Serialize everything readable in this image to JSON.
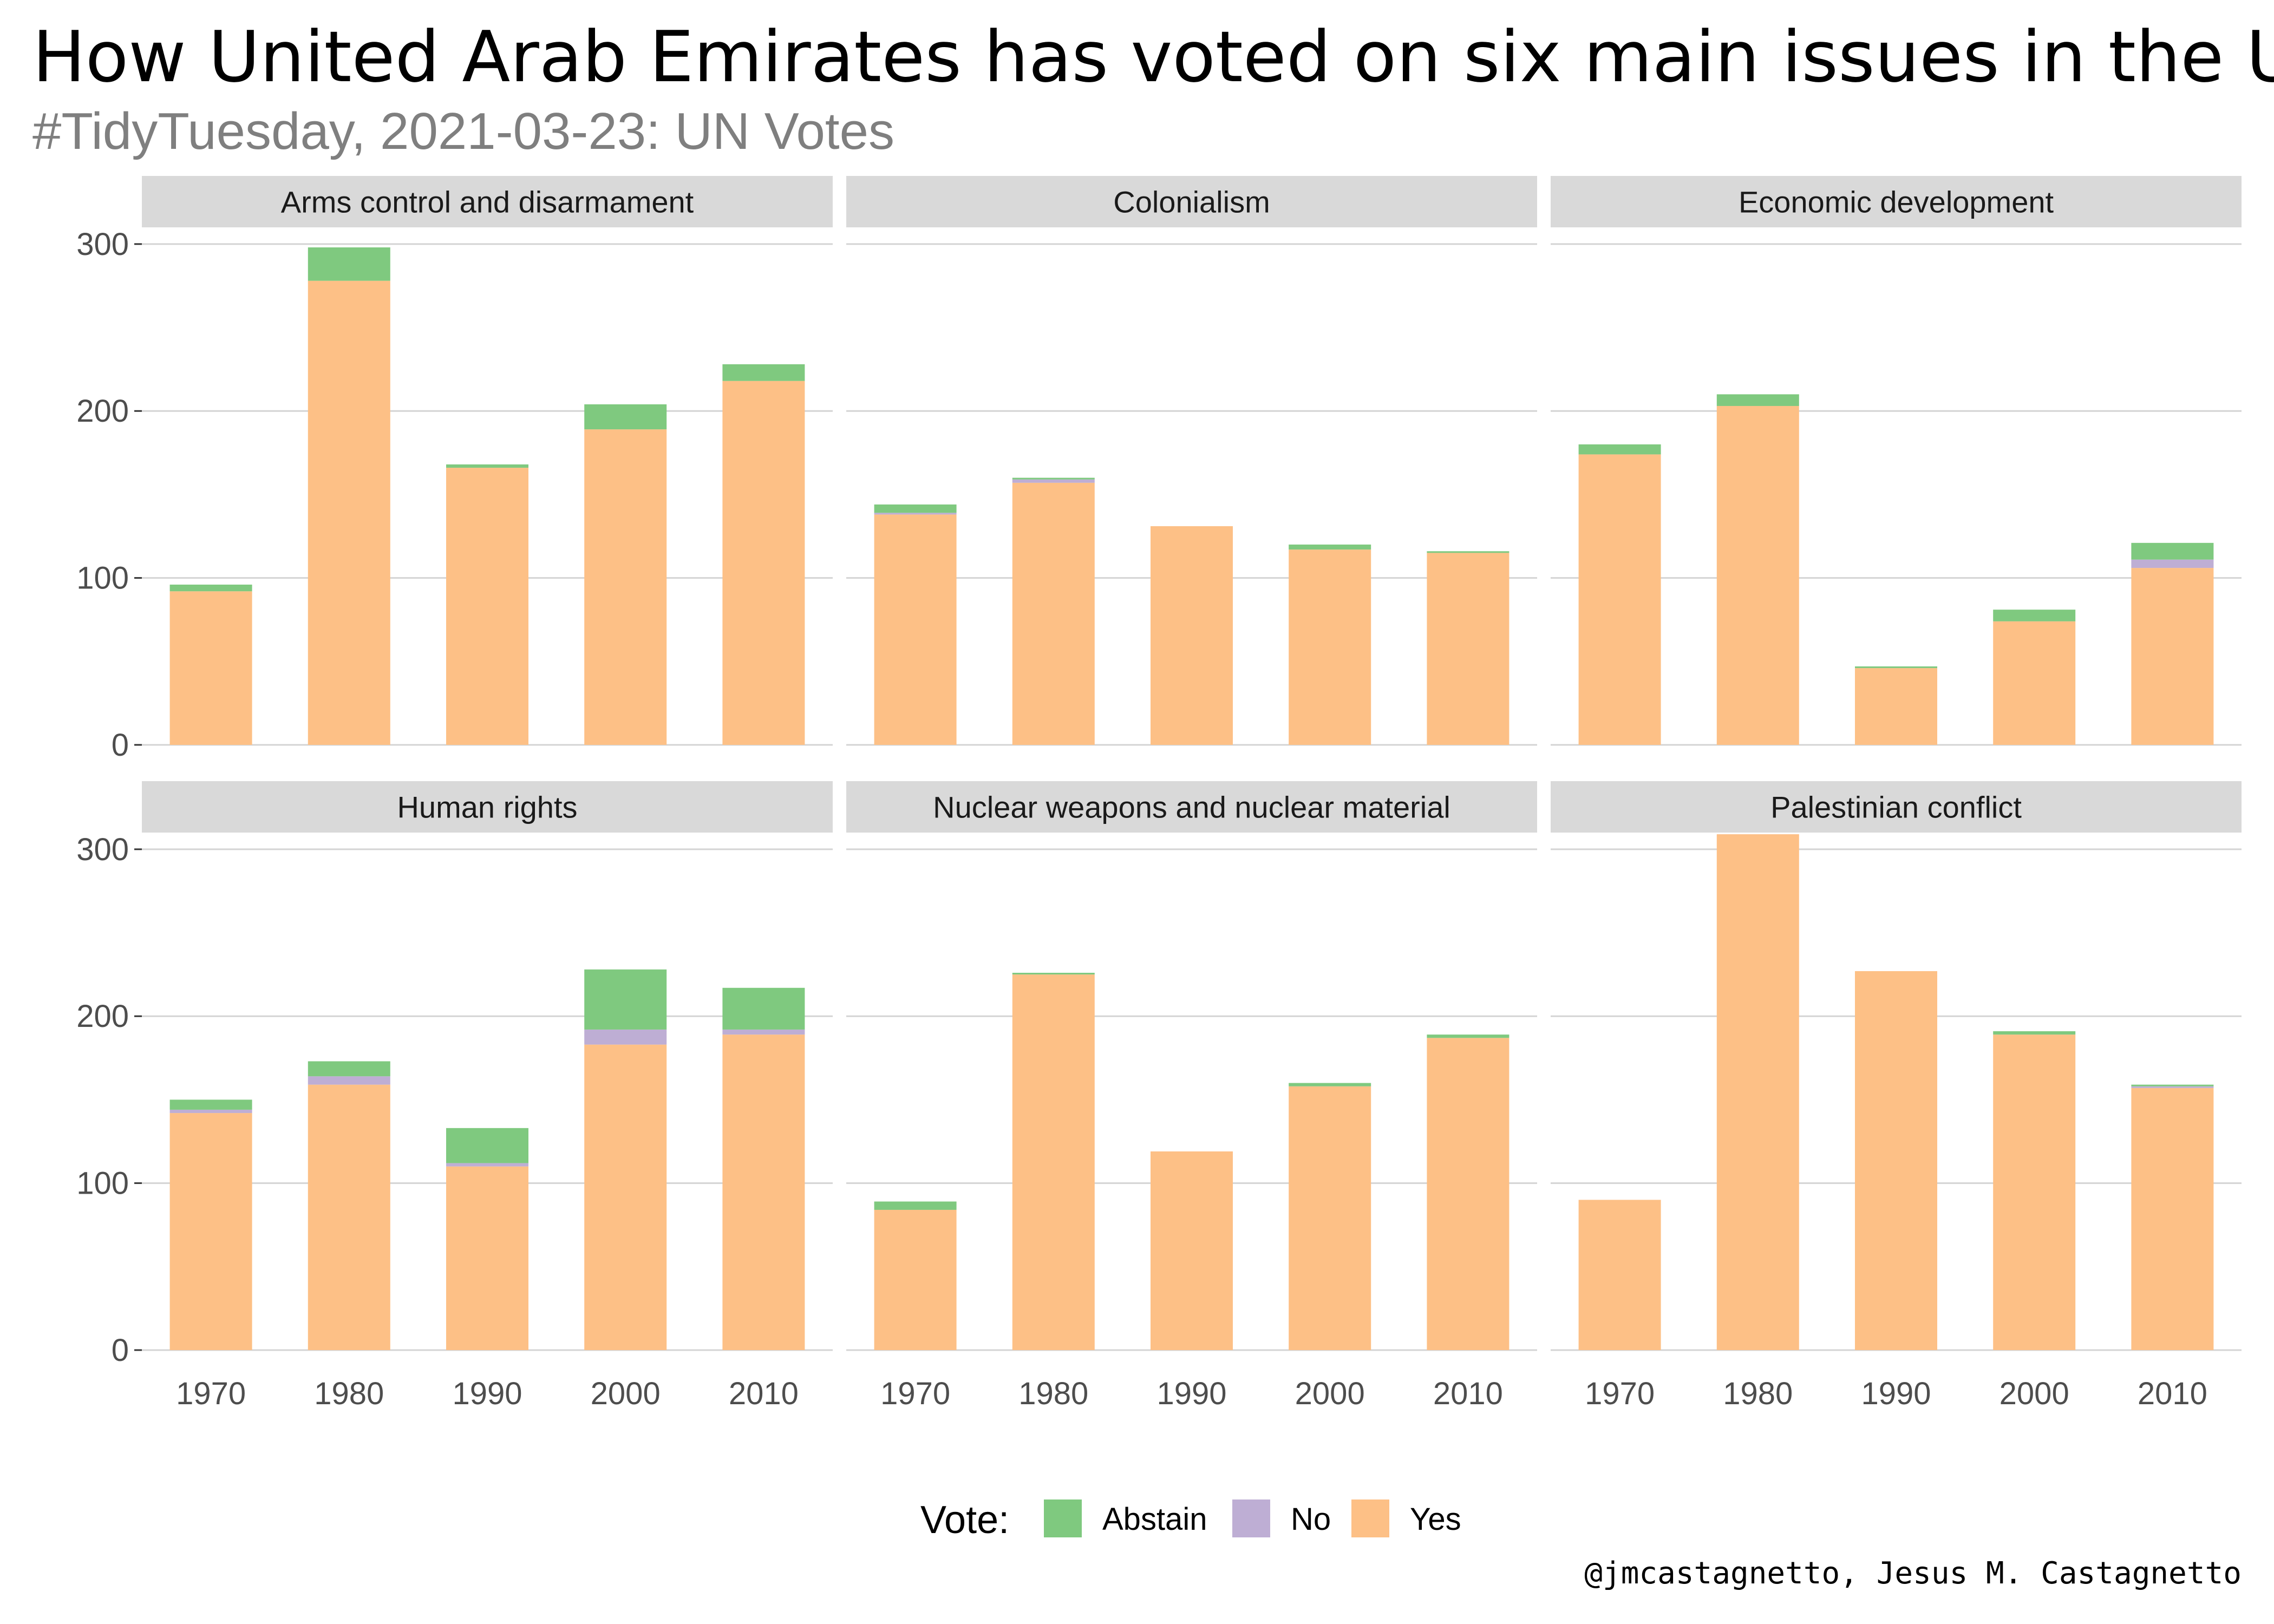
{
  "title": "How United Arab Emirates has voted on six main issues in the UN",
  "subtitle": "#TidyTuesday, 2021-03-23: UN Votes",
  "caption": "@jmcastagnetto, Jesus M. Castagnetto",
  "legend": {
    "title": "Vote:",
    "items": [
      {
        "label": "Abstain",
        "color": "#7fc97f"
      },
      {
        "label": "No",
        "color": "#beaed4"
      },
      {
        "label": "Yes",
        "color": "#fdc086"
      }
    ]
  },
  "chart_data": {
    "type": "bar",
    "stacked": true,
    "faceted": true,
    "categories": [
      "1970",
      "1980",
      "1990",
      "2000",
      "2010"
    ],
    "y_ticks": [
      "0",
      "100",
      "200",
      "300"
    ],
    "ylim": [
      0,
      310
    ],
    "grid": true,
    "legend_position": "bottom",
    "series_order": [
      "Yes",
      "No",
      "Abstain"
    ],
    "panels": [
      {
        "name": "Arms control and disarmament",
        "series": [
          {
            "name": "Yes",
            "values": [
              92,
              278,
              166,
              189,
              218
            ]
          },
          {
            "name": "No",
            "values": [
              0,
              0,
              0,
              0,
              0
            ]
          },
          {
            "name": "Abstain",
            "values": [
              4,
              20,
              2,
              15,
              10
            ]
          }
        ]
      },
      {
        "name": "Colonialism",
        "series": [
          {
            "name": "Yes",
            "values": [
              138,
              157,
              131,
              117,
              115
            ]
          },
          {
            "name": "No",
            "values": [
              1,
              2,
              0,
              0,
              0
            ]
          },
          {
            "name": "Abstain",
            "values": [
              5,
              1,
              0,
              3,
              1
            ]
          }
        ]
      },
      {
        "name": "Economic development",
        "series": [
          {
            "name": "Yes",
            "values": [
              174,
              203,
              46,
              74,
              106
            ]
          },
          {
            "name": "No",
            "values": [
              0,
              0,
              0,
              0,
              5
            ]
          },
          {
            "name": "Abstain",
            "values": [
              6,
              7,
              1,
              7,
              10
            ]
          }
        ]
      },
      {
        "name": "Human rights",
        "series": [
          {
            "name": "Yes",
            "values": [
              142,
              159,
              110,
              183,
              189
            ]
          },
          {
            "name": "No",
            "values": [
              2,
              5,
              2,
              9,
              3
            ]
          },
          {
            "name": "Abstain",
            "values": [
              6,
              9,
              21,
              36,
              25
            ]
          }
        ]
      },
      {
        "name": "Nuclear weapons and nuclear material",
        "series": [
          {
            "name": "Yes",
            "values": [
              84,
              225,
              119,
              158,
              187
            ]
          },
          {
            "name": "No",
            "values": [
              0,
              0,
              0,
              0,
              0
            ]
          },
          {
            "name": "Abstain",
            "values": [
              5,
              1,
              0,
              2,
              2
            ]
          }
        ]
      },
      {
        "name": "Palestinian conflict",
        "series": [
          {
            "name": "Yes",
            "values": [
              90,
              309,
              227,
              189,
              157
            ]
          },
          {
            "name": "No",
            "values": [
              0,
              0,
              0,
              0,
              1
            ]
          },
          {
            "name": "Abstain",
            "values": [
              0,
              0,
              0,
              2,
              1
            ]
          }
        ]
      }
    ]
  }
}
